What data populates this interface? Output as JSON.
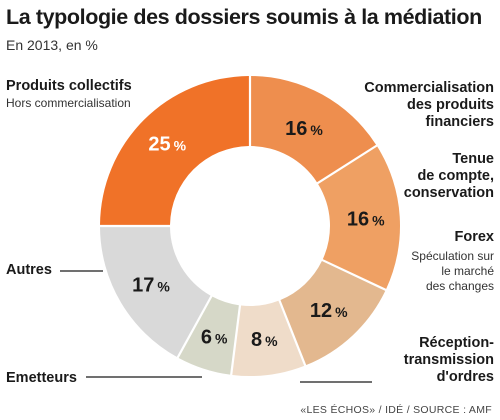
{
  "chart_data": {
    "type": "pie",
    "donut": true,
    "title": "La typologie des dossiers soumis à la médiation",
    "subtitle": "En 2013, en %",
    "unit": "%",
    "slices": [
      {
        "label_lines": [
          "Commercialisation",
          "des produits",
          "financiers"
        ],
        "sublabel_lines": [],
        "value": 16,
        "color": "#ee8e4e"
      },
      {
        "label_lines": [
          "Tenue",
          "de compte,",
          "conservation"
        ],
        "sublabel_lines": [],
        "value": 16,
        "color": "#efa063"
      },
      {
        "label_lines": [
          "Forex"
        ],
        "sublabel_lines": [
          "Spéculation sur",
          "le marché",
          "des changes"
        ],
        "value": 12,
        "color": "#e3b88f"
      },
      {
        "label_lines": [
          "Réception-",
          "transmission",
          "d'ordres"
        ],
        "sublabel_lines": [],
        "value": 8,
        "color": "#efdcc9"
      },
      {
        "label_lines": [
          "Emetteurs"
        ],
        "sublabel_lines": [],
        "value": 6,
        "color": "#d6d8c8"
      },
      {
        "label_lines": [
          "Autres"
        ],
        "sublabel_lines": [],
        "value": 17,
        "color": "#d9d9d9"
      },
      {
        "label_lines": [
          "Produits collectifs"
        ],
        "sublabel_lines": [
          "Hors commercialisation"
        ],
        "value": 25,
        "color": "#f07228"
      }
    ]
  },
  "source": "«LES ÉCHOS» / IDÉ / SOURCE : AMF"
}
